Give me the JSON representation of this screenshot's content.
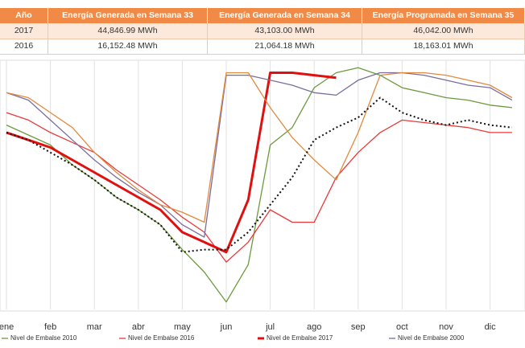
{
  "table": {
    "header": [
      "Año",
      "Energía Generada en Semana 33",
      "Energía Generada en Semana 34",
      "Energía Programada en Semana 35"
    ],
    "rows": [
      [
        "2017",
        "44,846.99 MWh",
        "43,103.00 MWh",
        "46,042.00 MWh"
      ],
      [
        "2016",
        "16,152.48 MWh",
        "21,064.18 MWh",
        "18,163.01 MWh"
      ]
    ]
  },
  "chart_data": {
    "type": "line",
    "categories": [
      "ene",
      null,
      "feb",
      null,
      "mar",
      null,
      "abr",
      null,
      "may",
      null,
      "jun",
      null,
      "jul",
      null,
      "ago",
      null,
      "sep",
      null,
      "oct",
      null,
      "nov",
      null,
      "dic",
      null
    ],
    "ylim": [
      0,
      100
    ],
    "grid": true,
    "series": [
      {
        "name": "Nivel de Embalse 2010",
        "color": "#6b9a3c",
        "width": 1.3,
        "values": [
          74,
          70,
          66,
          58,
          52,
          45,
          40,
          34,
          24,
          15,
          3,
          18,
          66,
          73,
          89,
          95,
          97,
          94,
          89,
          87,
          85,
          84,
          82,
          81
        ]
      },
      {
        "name": "Nivel de Embalse 2016",
        "color": "#e83a3a",
        "width": 1.3,
        "values": [
          79,
          76,
          71,
          67,
          63,
          56,
          50,
          44,
          37,
          31,
          19,
          27,
          40,
          35,
          35,
          53,
          63,
          71,
          76,
          75,
          74,
          73,
          71,
          71
        ]
      },
      {
        "name": "Nivel de Embalse 2017",
        "color": "#e01010",
        "width": 3,
        "values": [
          71,
          68,
          65,
          60,
          55,
          50,
          45,
          40,
          31,
          27,
          23,
          44,
          95,
          95,
          94,
          93,
          null,
          null,
          null,
          null,
          null,
          null,
          null,
          null
        ]
      },
      {
        "name": "Nivel de Embalse 2000",
        "color": "#7a6d9c",
        "width": 1.3,
        "values": [
          87,
          84,
          76,
          68,
          60,
          53,
          47,
          42,
          34,
          29,
          94,
          94,
          92,
          90,
          87,
          86,
          92,
          95,
          95,
          94,
          92,
          90,
          89,
          84
        ]
      },
      {
        "color": "#e08a40",
        "width": 1.3,
        "values": [
          87,
          85,
          79,
          73,
          63,
          55,
          48,
          42,
          39,
          35,
          95,
          95,
          81,
          69,
          60,
          52,
          71,
          94,
          95,
          95,
          94,
          92,
          90,
          85
        ]
      },
      {
        "color": "#111111",
        "width": 2,
        "dash": "2 3",
        "values": [
          71,
          68,
          63,
          58,
          52,
          45,
          40,
          34,
          23,
          24,
          24,
          31,
          42,
          53,
          68,
          73,
          77,
          85,
          79,
          76,
          74,
          76,
          74,
          73
        ]
      }
    ]
  }
}
